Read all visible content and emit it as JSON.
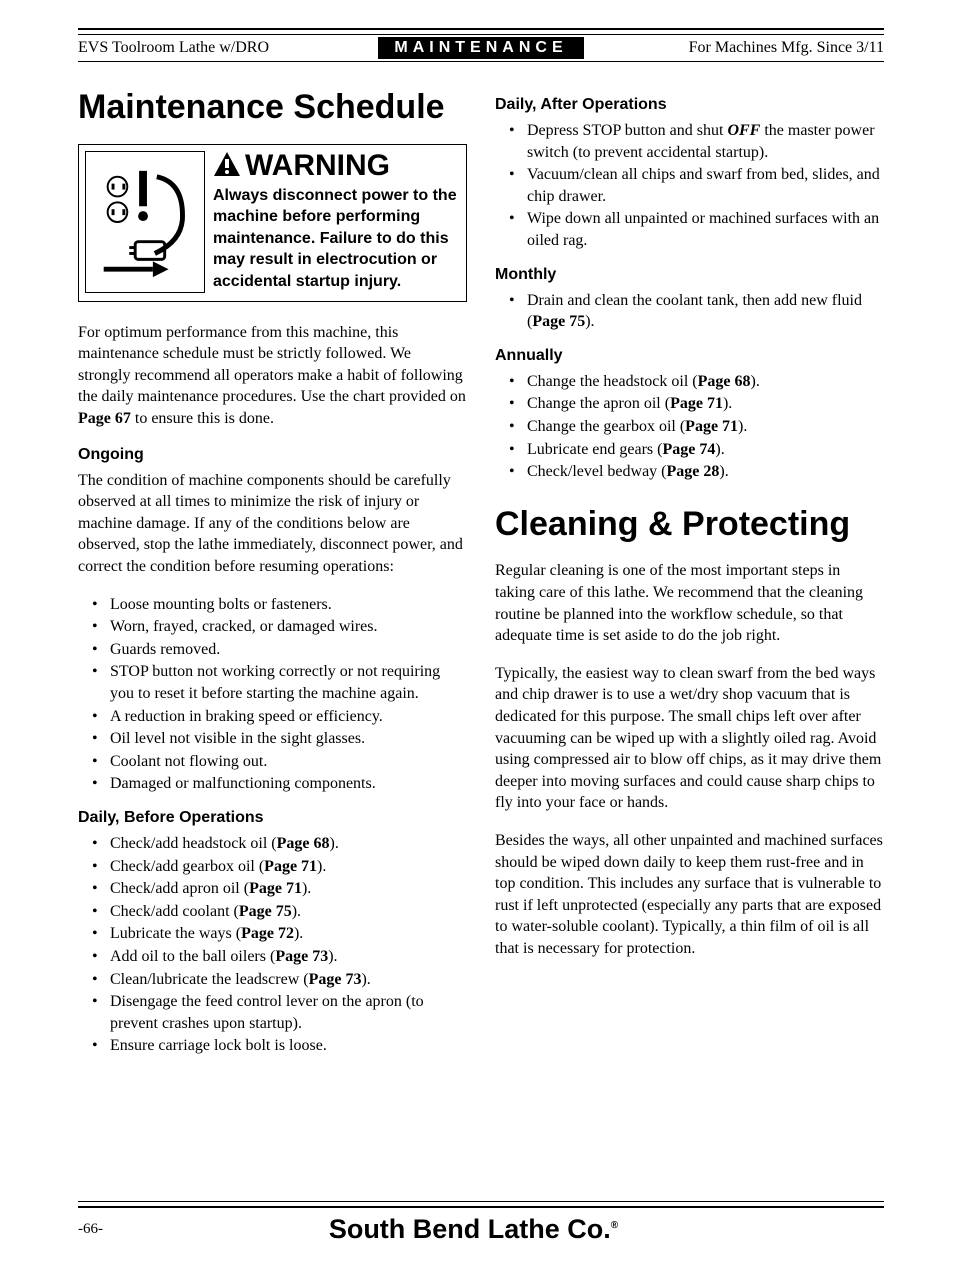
{
  "header": {
    "left": "EVS Toolroom Lathe w/DRO",
    "center": "MAINTENANCE",
    "right": "For Machines Mfg. Since 3/11"
  },
  "left_col": {
    "title": "Maintenance Schedule",
    "warning": {
      "heading": "WARNING",
      "body": "Always disconnect power to the machine before performing maintenance. Failure to do this may result in electrocution or accidental startup injury."
    },
    "intro_parts": {
      "a": "For optimum performance from this machine, this maintenance schedule must be strictly followed. We strongly recommend all operators make a habit of following the daily maintenance procedures. Use the chart provided on ",
      "pg": "Page 67",
      "b": " to ensure this is done."
    },
    "ongoing": {
      "head": "Ongoing",
      "para": "The condition of machine components should be carefully observed at all times to minimize the risk of injury or machine damage. If any of the conditions below are observed, stop the lathe immediately, disconnect power, and correct the condition before resuming operations:",
      "items": [
        "Loose mounting bolts or fasteners.",
        "Worn, frayed, cracked, or damaged wires.",
        "Guards removed.",
        "STOP button not working correctly or not requiring you to reset it before starting the machine again.",
        "A reduction in braking speed or efficiency.",
        "Oil level not visible in the sight glasses.",
        "Coolant not flowing out.",
        "Damaged or malfunctioning components."
      ]
    },
    "daily_before": {
      "head": "Daily, Before Operations",
      "items": [
        {
          "a": "Check/add headstock oil (",
          "pg": "Page 68",
          "b": ")."
        },
        {
          "a": "Check/add gearbox oil (",
          "pg": "Page 71",
          "b": ")."
        },
        {
          "a": "Check/add apron oil (",
          "pg": "Page 71",
          "b": ")."
        },
        {
          "a": "Check/add coolant (",
          "pg": "Page 75",
          "b": ")."
        },
        {
          "a": "Lubricate the ways (",
          "pg": "Page 72",
          "b": ")."
        },
        {
          "a": "Add oil to the ball oilers (",
          "pg": "Page 73",
          "b": ")."
        },
        {
          "a": "Clean/lubricate the leadscrew (",
          "pg": "Page 73",
          "b": ")."
        },
        {
          "a": "Disengage the feed control lever on the apron (to prevent crashes upon startup)."
        },
        {
          "a": "Ensure carriage lock bolt is loose."
        }
      ]
    }
  },
  "right_col": {
    "daily_after": {
      "head": "Daily, After Operations",
      "items": [
        {
          "a": "Depress STOP button and shut ",
          "off": "OFF",
          "b": " the master power switch (to prevent accidental startup)."
        },
        {
          "a": "Vacuum/clean all chips and swarf from bed, slides, and chip drawer."
        },
        {
          "a": "Wipe down all unpainted or machined surfaces with an oiled rag."
        }
      ]
    },
    "monthly": {
      "head": "Monthly",
      "items": [
        {
          "a": "Drain and clean the coolant tank, then add new fluid (",
          "pg": "Page 75",
          "b": ")."
        }
      ]
    },
    "annually": {
      "head": "Annually",
      "items": [
        {
          "a": "Change the headstock oil (",
          "pg": "Page 68",
          "b": ")."
        },
        {
          "a": "Change the apron oil (",
          "pg": "Page 71",
          "b": ")."
        },
        {
          "a": "Change the gearbox oil (",
          "pg": "Page 71",
          "b": ")."
        },
        {
          "a": "Lubricate end gears (",
          "pg": "Page 74",
          "b": ")."
        },
        {
          "a": "Check/level bedway (",
          "pg": "Page 28",
          "b": ")."
        }
      ]
    },
    "cleaning": {
      "title": "Cleaning & Protecting",
      "p1": "Regular cleaning is one of the most important steps in taking care of this lathe. We recommend that the cleaning routine be planned into the workflow schedule, so that adequate time is set aside to do the job right.",
      "p2": "Typically, the easiest way to clean swarf from the bed ways and chip drawer is to use a wet/dry shop vacuum that is dedicated for this purpose. The small chips left over after vacuuming can be wiped up with a slightly oiled rag. Avoid using compressed air to blow off chips, as it may drive them deeper into moving surfaces and could cause sharp chips to fly into your face or hands.",
      "p3": "Besides the ways, all other unpainted and machined surfaces should be wiped down daily to keep them rust-free and in top condition. This includes any surface that is vulnerable to rust if left unprotected (especially any parts that are exposed to water-soluble coolant). Typically, a thin film of oil is all that is necessary for protection."
    }
  },
  "footer": {
    "page": "-66-",
    "logo": "South Bend Lathe Co."
  }
}
